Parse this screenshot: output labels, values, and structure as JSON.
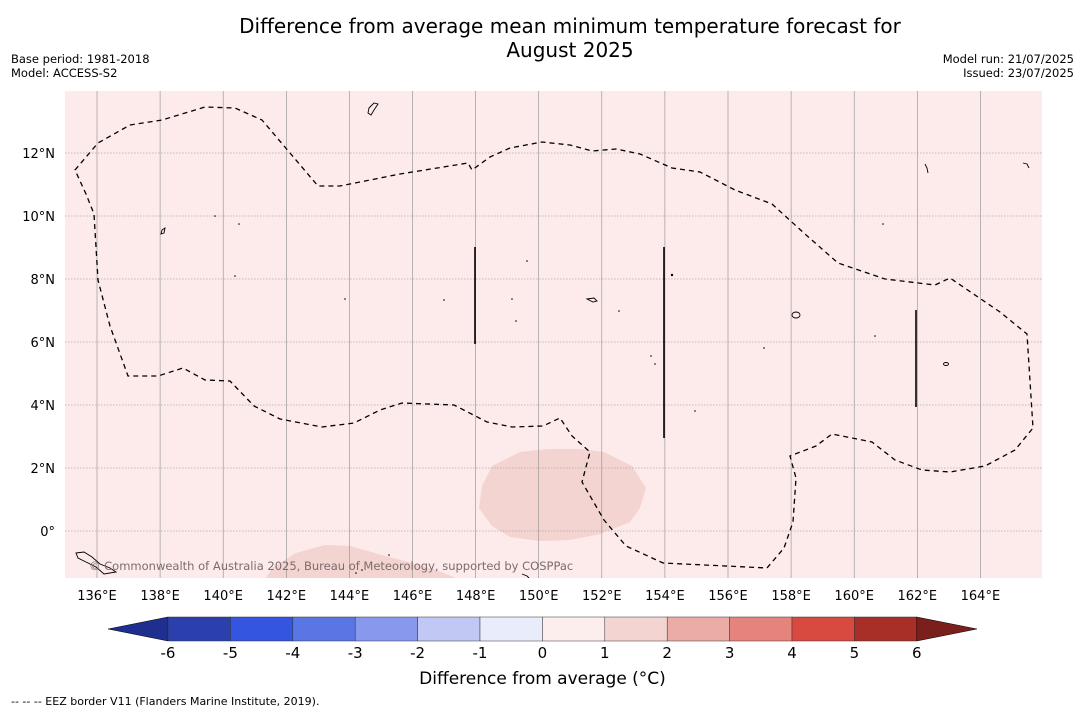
{
  "header": {
    "title_line1": "Difference from average mean minimum temperature forecast for",
    "title_line2": "August 2025",
    "base_period": "Base period: 1981-2018",
    "model": "Model: ACCESS-S2",
    "model_run": "Model run: 21/07/2025",
    "issued": "Issued: 23/07/2025"
  },
  "map": {
    "background_color": "#fcebea",
    "anomaly_patch_color": "#f3d4d1",
    "lon_labels": [
      "136°E",
      "138°E",
      "140°E",
      "142°E",
      "144°E",
      "146°E",
      "148°E",
      "150°E",
      "152°E",
      "154°E",
      "156°E",
      "158°E",
      "160°E",
      "162°E",
      "164°E"
    ],
    "lat_labels": [
      "12°N",
      "10°N",
      "8°N",
      "6°N",
      "4°N",
      "2°N",
      "0°"
    ],
    "copyright": "© Commonwealth of Australia 2025, Bureau of Meteorology, supported by COSPPac"
  },
  "colorbar": {
    "ticks": [
      "-6",
      "-5",
      "-4",
      "-3",
      "-2",
      "-1",
      "0",
      "1",
      "2",
      "3",
      "4",
      "5",
      "6"
    ],
    "colors": [
      "#1f2f8f",
      "#2b3fad",
      "#3355e0",
      "#5a75e4",
      "#8898ec",
      "#c2c8f4",
      "#e9ecfa",
      "#fdeeee",
      "#f3d4d1",
      "#ebaca5",
      "#e5847c",
      "#d84a3f",
      "#a82e28",
      "#7a1f1c"
    ],
    "label": "Difference from average (°C)"
  },
  "footer": {
    "eez_note": "--  --  -- EEZ border V11 (Flanders Marine Institute, 2019)."
  }
}
